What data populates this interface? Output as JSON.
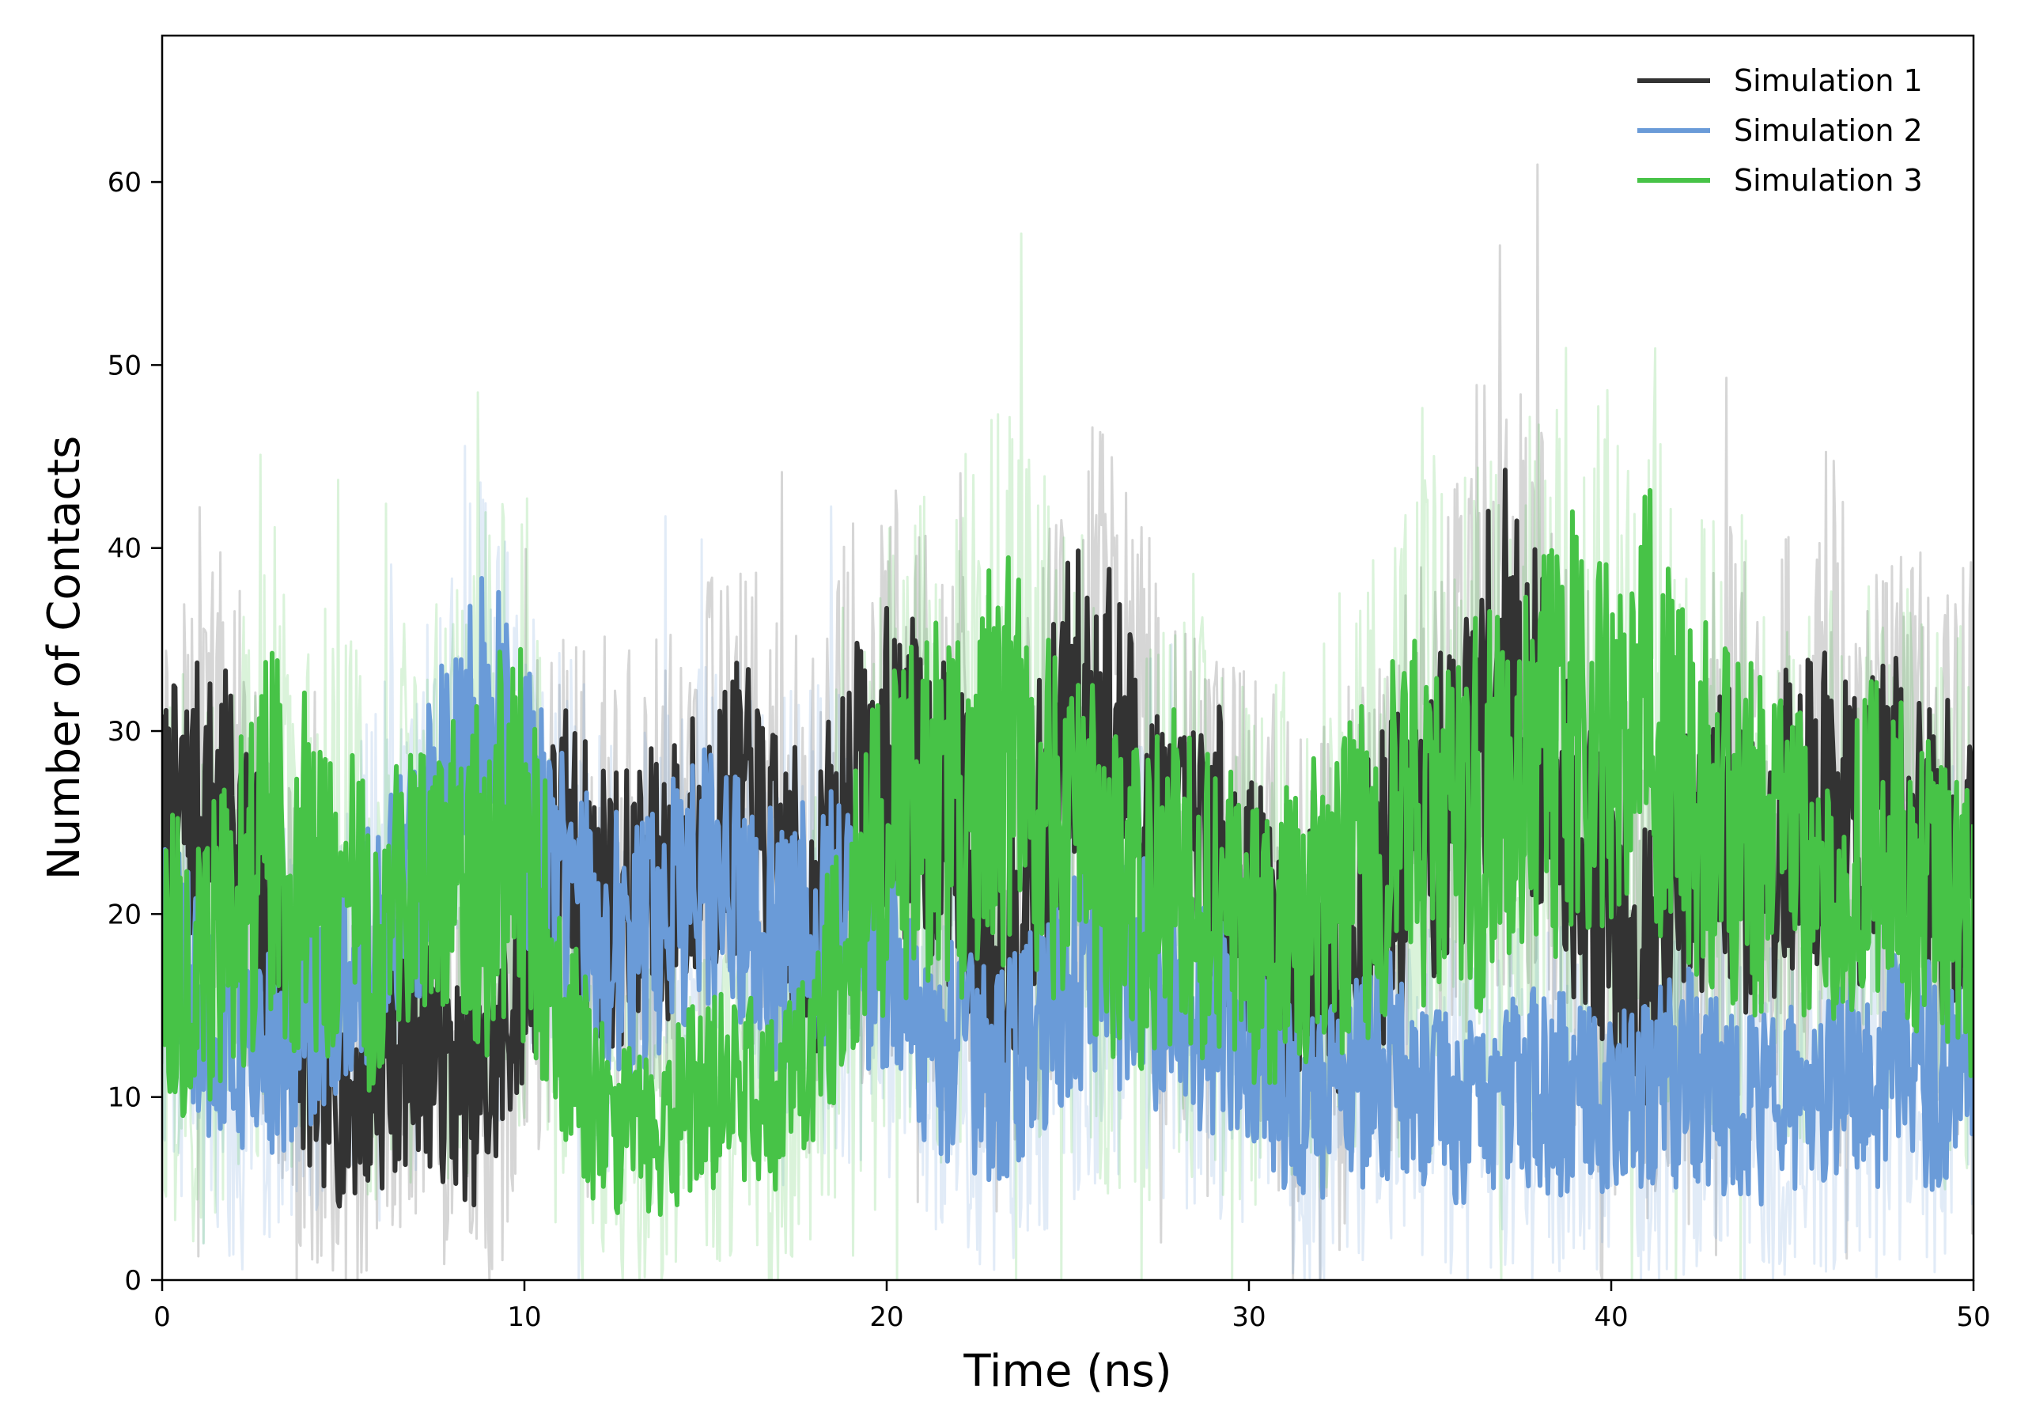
{
  "chart_data": {
    "type": "line",
    "title": "",
    "xlabel": "Time (ns)",
    "ylabel": "Number of Contacts",
    "xlim": [
      0,
      50
    ],
    "ylim": [
      0,
      68
    ],
    "xticks": [
      0,
      10,
      20,
      30,
      40,
      50
    ],
    "yticks": [
      0,
      10,
      20,
      30,
      40,
      50,
      60
    ],
    "grid": false,
    "legend_position": "top-right",
    "raw_alpha": 0.2,
    "x": [
      0,
      1,
      2,
      3,
      4,
      5,
      6,
      7,
      8,
      9,
      10,
      11,
      12,
      13,
      14,
      15,
      16,
      17,
      18,
      19,
      20,
      21,
      22,
      23,
      24,
      25,
      26,
      27,
      28,
      29,
      30,
      31,
      32,
      33,
      34,
      35,
      36,
      37,
      38,
      39,
      40,
      41,
      42,
      43,
      44,
      45,
      46,
      47,
      48,
      49,
      50
    ],
    "series": [
      {
        "name": "Simulation 1",
        "color": "#333333",
        "smoothed": [
          24,
          26,
          25,
          18,
          12,
          10,
          11,
          14,
          11,
          10,
          18,
          24,
          21,
          20,
          22,
          24,
          26,
          22,
          20,
          26,
          28,
          27,
          24,
          18,
          22,
          30,
          31,
          26,
          22,
          24,
          20,
          18,
          17,
          20,
          22,
          24,
          28,
          34,
          30,
          24,
          20,
          17,
          21,
          24,
          23,
          25,
          26,
          24,
          26,
          23,
          24
        ],
        "band": [
          9,
          9,
          9,
          8,
          7,
          7,
          7,
          8,
          7,
          7,
          8,
          9,
          9,
          9,
          9,
          9,
          9,
          9,
          9,
          10,
          10,
          10,
          10,
          9,
          10,
          11,
          11,
          10,
          9,
          9,
          9,
          9,
          9,
          9,
          10,
          10,
          11,
          12,
          11,
          10,
          10,
          9,
          10,
          10,
          10,
          10,
          10,
          10,
          10,
          10,
          10
        ]
      },
      {
        "name": "Simulation 2",
        "color": "#6a9bd8",
        "smoothed": [
          18,
          15,
          12,
          12,
          14,
          16,
          20,
          22,
          28,
          30,
          26,
          22,
          19,
          18,
          20,
          22,
          21,
          18,
          20,
          19,
          17,
          14,
          12,
          11,
          13,
          16,
          18,
          17,
          15,
          14,
          14,
          10,
          9,
          11,
          12,
          10,
          9,
          10,
          11,
          10,
          9,
          10,
          11,
          10,
          9,
          10,
          10,
          11,
          12,
          11,
          12
        ],
        "band": [
          8,
          7,
          7,
          7,
          7,
          7,
          8,
          8,
          9,
          10,
          9,
          8,
          8,
          8,
          8,
          8,
          8,
          8,
          8,
          8,
          7,
          7,
          7,
          7,
          7,
          8,
          8,
          8,
          7,
          7,
          7,
          6,
          6,
          7,
          7,
          6,
          6,
          6,
          7,
          6,
          6,
          6,
          7,
          6,
          6,
          6,
          6,
          7,
          7,
          7,
          7
        ]
      },
      {
        "name": "Simulation 3",
        "color": "#47c347",
        "smoothed": [
          18,
          16,
          20,
          24,
          22,
          20,
          19,
          21,
          22,
          23,
          24,
          14,
          9,
          8,
          9,
          10,
          11,
          9,
          14,
          20,
          24,
          25,
          26,
          29,
          27,
          24,
          22,
          20,
          22,
          21,
          18,
          19,
          20,
          22,
          24,
          26,
          25,
          27,
          29,
          30,
          28,
          31,
          27,
          25,
          24,
          23,
          22,
          24,
          23,
          21,
          20
        ],
        "band": [
          9,
          9,
          10,
          12,
          11,
          10,
          10,
          10,
          11,
          12,
          13,
          8,
          6,
          5,
          6,
          6,
          6,
          6,
          8,
          10,
          11,
          12,
          12,
          13,
          12,
          11,
          11,
          10,
          11,
          10,
          9,
          9,
          10,
          11,
          11,
          12,
          12,
          13,
          13,
          14,
          13,
          14,
          12,
          11,
          11,
          10,
          10,
          11,
          10,
          10,
          10
        ]
      }
    ]
  }
}
